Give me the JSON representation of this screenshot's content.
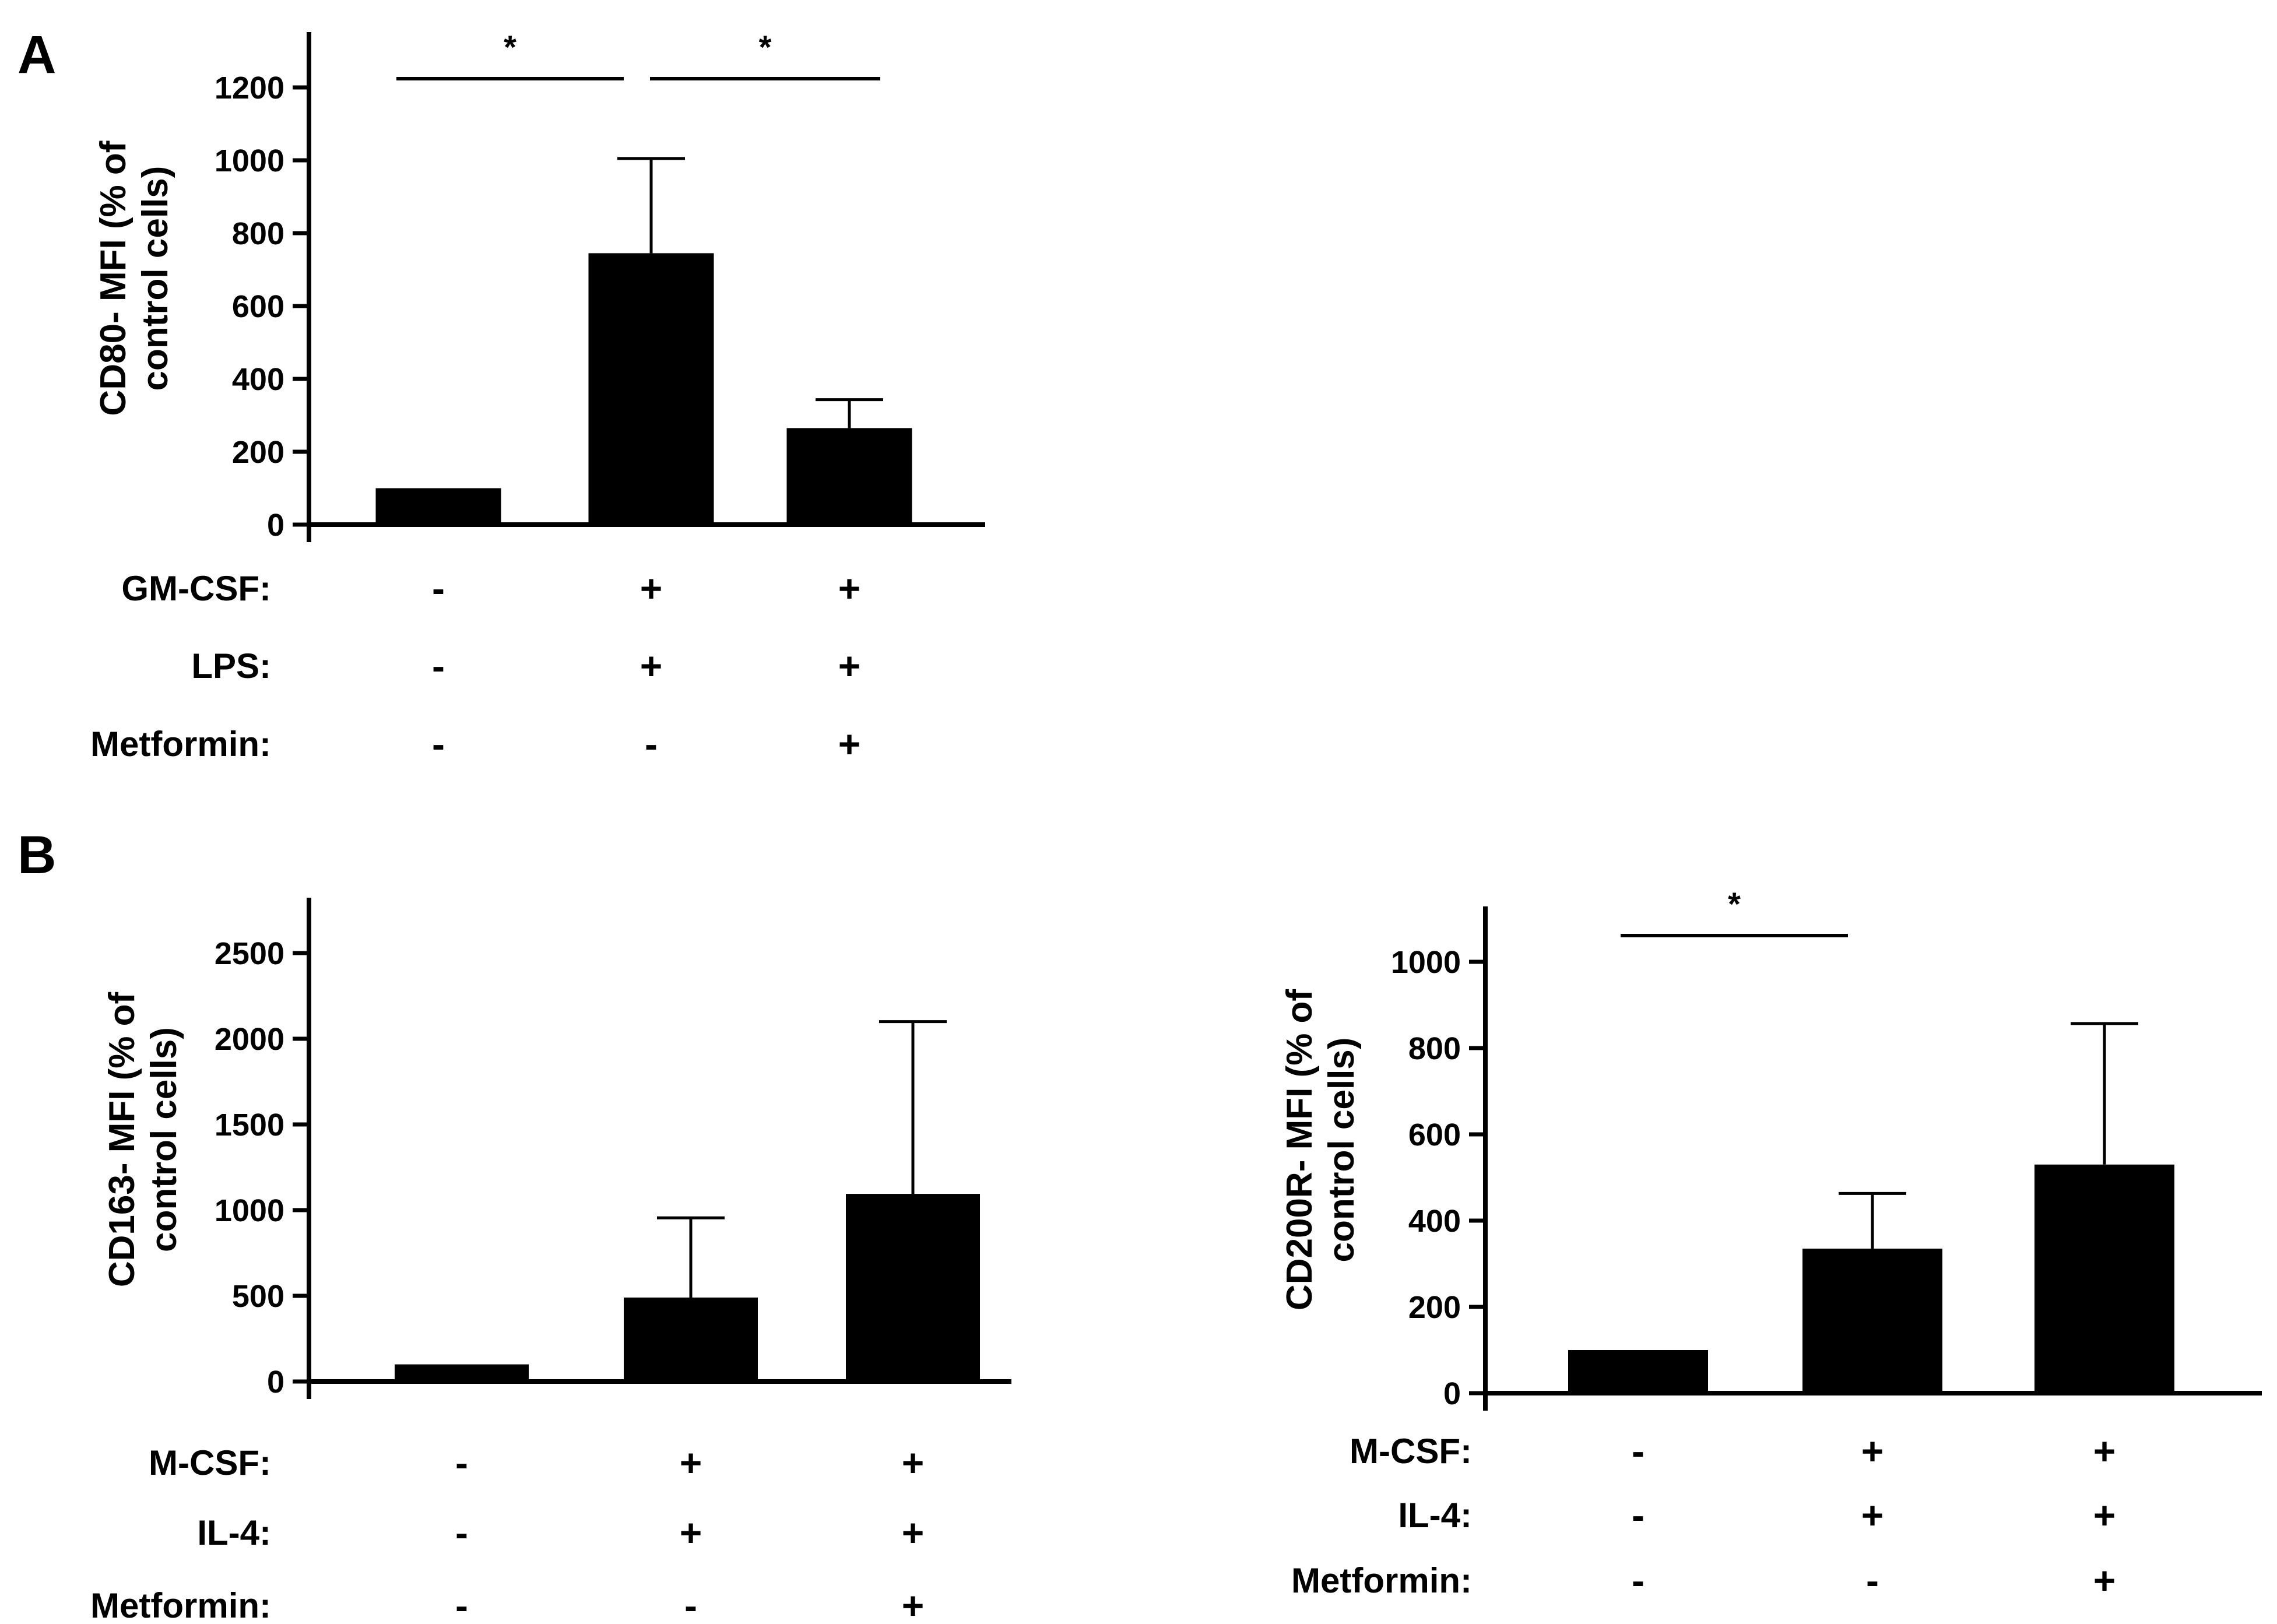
{
  "panels": [
    {
      "letter": "A",
      "conditions": [
        {
          "label": "GM-CSF:",
          "values": [
            "-",
            "+",
            "+"
          ]
        },
        {
          "label": "LPS:",
          "values": [
            "-",
            "+",
            "+"
          ]
        },
        {
          "label": "Metformin:",
          "values": [
            "-",
            "-",
            "+"
          ]
        }
      ],
      "significance": [
        {
          "from": 0,
          "to": 1,
          "label": "*"
        },
        {
          "from": 1,
          "to": 2,
          "label": "*"
        }
      ]
    },
    {
      "letter": "B",
      "conditions": [
        {
          "label": "M-CSF:",
          "values": [
            "-",
            "+",
            "+"
          ]
        },
        {
          "label": "IL-4:",
          "values": [
            "-",
            "+",
            "+"
          ]
        },
        {
          "label": "Metformin:",
          "values": [
            "-",
            "-",
            "+"
          ]
        }
      ],
      "significance": []
    },
    {
      "letter": "",
      "conditions": [
        {
          "label": "M-CSF:",
          "values": [
            "-",
            "+",
            "+"
          ]
        },
        {
          "label": "IL-4:",
          "values": [
            "-",
            "+",
            "+"
          ]
        },
        {
          "label": "Metformin:",
          "values": [
            "-",
            "-",
            "+"
          ]
        }
      ],
      "significance": [
        {
          "from": 0,
          "to": 1,
          "label": "*"
        }
      ]
    }
  ],
  "chart_data": [
    {
      "type": "bar",
      "title": "",
      "xlabel": "",
      "ylabel": "CD80- MFI (% of control cells)",
      "ylabel_lines": [
        "CD80- MFI (% of",
        "control cells)"
      ],
      "categories": [
        "1",
        "2",
        "3"
      ],
      "values": [
        100,
        745,
        265
      ],
      "errors": [
        0,
        260,
        78
      ],
      "ylim": [
        0,
        1200
      ],
      "yticks": [
        0,
        200,
        400,
        600,
        800,
        1000,
        1200
      ],
      "bar_color": "#000000"
    },
    {
      "type": "bar",
      "title": "",
      "xlabel": "",
      "ylabel": "CD163- MFI (% of control cells)",
      "ylabel_lines": [
        "CD163- MFI (% of",
        "control cells)"
      ],
      "categories": [
        "1",
        "2",
        "3"
      ],
      "values": [
        100,
        490,
        1095
      ],
      "errors": [
        0,
        465,
        1005
      ],
      "ylim": [
        0,
        2500
      ],
      "yticks": [
        0,
        500,
        1000,
        1500,
        2000,
        2500
      ],
      "bar_color": "#000000"
    },
    {
      "type": "bar",
      "title": "",
      "xlabel": "",
      "ylabel": "CD200R- MFI (% of control cells)",
      "ylabel_lines": [
        "CD200R- MFI (% of",
        "control cells)"
      ],
      "categories": [
        "1",
        "2",
        "3"
      ],
      "values": [
        100,
        335,
        530
      ],
      "errors": [
        0,
        128,
        327
      ],
      "ylim": [
        0,
        1000
      ],
      "yticks": [
        0,
        200,
        400,
        600,
        800,
        1000
      ],
      "bar_color": "#000000"
    }
  ]
}
